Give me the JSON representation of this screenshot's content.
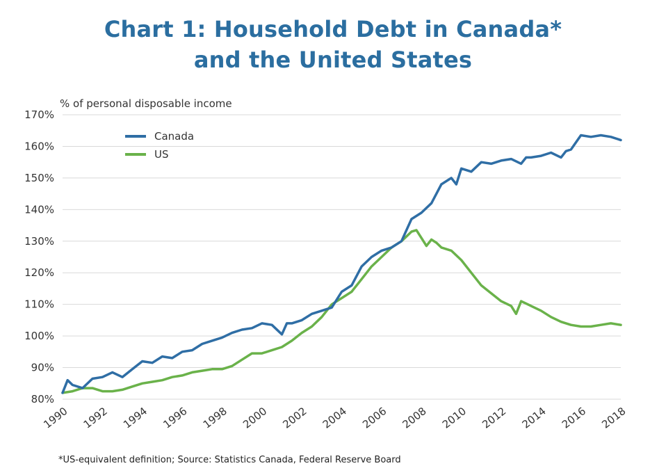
{
  "header": {
    "title_line1": "Chart 1: Household Debt in Canada*",
    "title_line2": "and the United States",
    "unit_label": "% of personal disposable income"
  },
  "footnote": "*US-equivalent definition; Source: Statistics Canada, Federal Reserve Board",
  "chart_data": {
    "type": "line",
    "title": "Chart 1: Household Debt in Canada* and the United States",
    "ylabel": "% of personal disposable income",
    "xlabel": "",
    "ylim": [
      80,
      170
    ],
    "xlim": [
      1990,
      2018
    ],
    "grid": "horizontal",
    "legend_position": "top-left",
    "y_ticks": [
      "80%",
      "90%",
      "100%",
      "110%",
      "120%",
      "130%",
      "140%",
      "150%",
      "160%",
      "170%"
    ],
    "x_ticks": [
      "1990",
      "1992",
      "1994",
      "1996",
      "1998",
      "2000",
      "2002",
      "2004",
      "2006",
      "2008",
      "2010",
      "2012",
      "2014",
      "2016",
      "2018"
    ],
    "series": [
      {
        "name": "Canada",
        "color": "#2f6ea5",
        "x": [
          1990,
          1990.25,
          1990.5,
          1991,
          1991.5,
          1992,
          1992.5,
          1993,
          1993.5,
          1994,
          1994.5,
          1995,
          1995.5,
          1996,
          1996.5,
          1997,
          1997.5,
          1998,
          1998.5,
          1999,
          1999.5,
          2000,
          2000.5,
          2001,
          2001.25,
          2001.5,
          2002,
          2002.5,
          2003,
          2003.5,
          2004,
          2004.5,
          2005,
          2005.5,
          2006,
          2006.5,
          2007,
          2007.5,
          2008,
          2008.5,
          2009,
          2009.5,
          2009.75,
          2010,
          2010.5,
          2011,
          2011.5,
          2012,
          2012.5,
          2013,
          2013.25,
          2013.5,
          2014,
          2014.5,
          2015,
          2015.25,
          2015.5,
          2016,
          2016.5,
          2017,
          2017.5,
          2018
        ],
        "values": [
          82,
          86,
          84.5,
          83.5,
          86.5,
          87,
          88.5,
          87,
          89.5,
          92,
          91.5,
          93.5,
          93,
          95,
          95.5,
          97.5,
          98.5,
          99.5,
          101,
          102,
          102.5,
          104,
          103.5,
          100.5,
          104,
          104,
          105,
          107,
          108,
          109,
          114,
          116,
          122,
          125,
          127,
          128,
          130,
          137,
          139,
          142,
          148,
          150,
          148,
          153,
          152,
          155,
          154.5,
          155.5,
          156,
          154.5,
          156.5,
          156.5,
          157,
          158,
          156.5,
          158.5,
          159,
          163.5,
          163,
          163.5,
          163,
          162
        ]
      },
      {
        "name": "US",
        "color": "#6ab24a",
        "x": [
          1990,
          1990.5,
          1991,
          1991.5,
          1992,
          1992.5,
          1993,
          1993.5,
          1994,
          1994.5,
          1995,
          1995.5,
          1996,
          1996.5,
          1997,
          1997.5,
          1998,
          1998.5,
          1999,
          1999.5,
          2000,
          2000.5,
          2001,
          2001.5,
          2002,
          2002.5,
          2003,
          2003.5,
          2004,
          2004.5,
          2005,
          2005.5,
          2006,
          2006.5,
          2007,
          2007.5,
          2007.75,
          2008,
          2008.25,
          2008.5,
          2008.75,
          2009,
          2009.5,
          2010,
          2010.5,
          2011,
          2011.5,
          2012,
          2012.5,
          2012.75,
          2013,
          2013.5,
          2014,
          2014.5,
          2015,
          2015.5,
          2016,
          2016.5,
          2017,
          2017.5,
          2018
        ],
        "values": [
          82,
          82.5,
          83.5,
          83.5,
          82.5,
          82.5,
          83,
          84,
          85,
          85.5,
          86,
          87,
          87.5,
          88.5,
          89,
          89.5,
          89.5,
          90.5,
          92.5,
          94.5,
          94.5,
          95.5,
          96.5,
          98.5,
          101,
          103,
          106,
          110,
          112,
          114,
          118,
          122,
          125,
          128,
          130,
          133,
          133.5,
          131,
          128.5,
          130.5,
          129.5,
          128,
          127,
          124,
          120,
          116,
          113.5,
          111,
          109.5,
          107,
          111,
          109.5,
          108,
          106,
          104.5,
          103.5,
          103,
          103,
          103.5,
          104,
          103.5
        ]
      }
    ]
  }
}
